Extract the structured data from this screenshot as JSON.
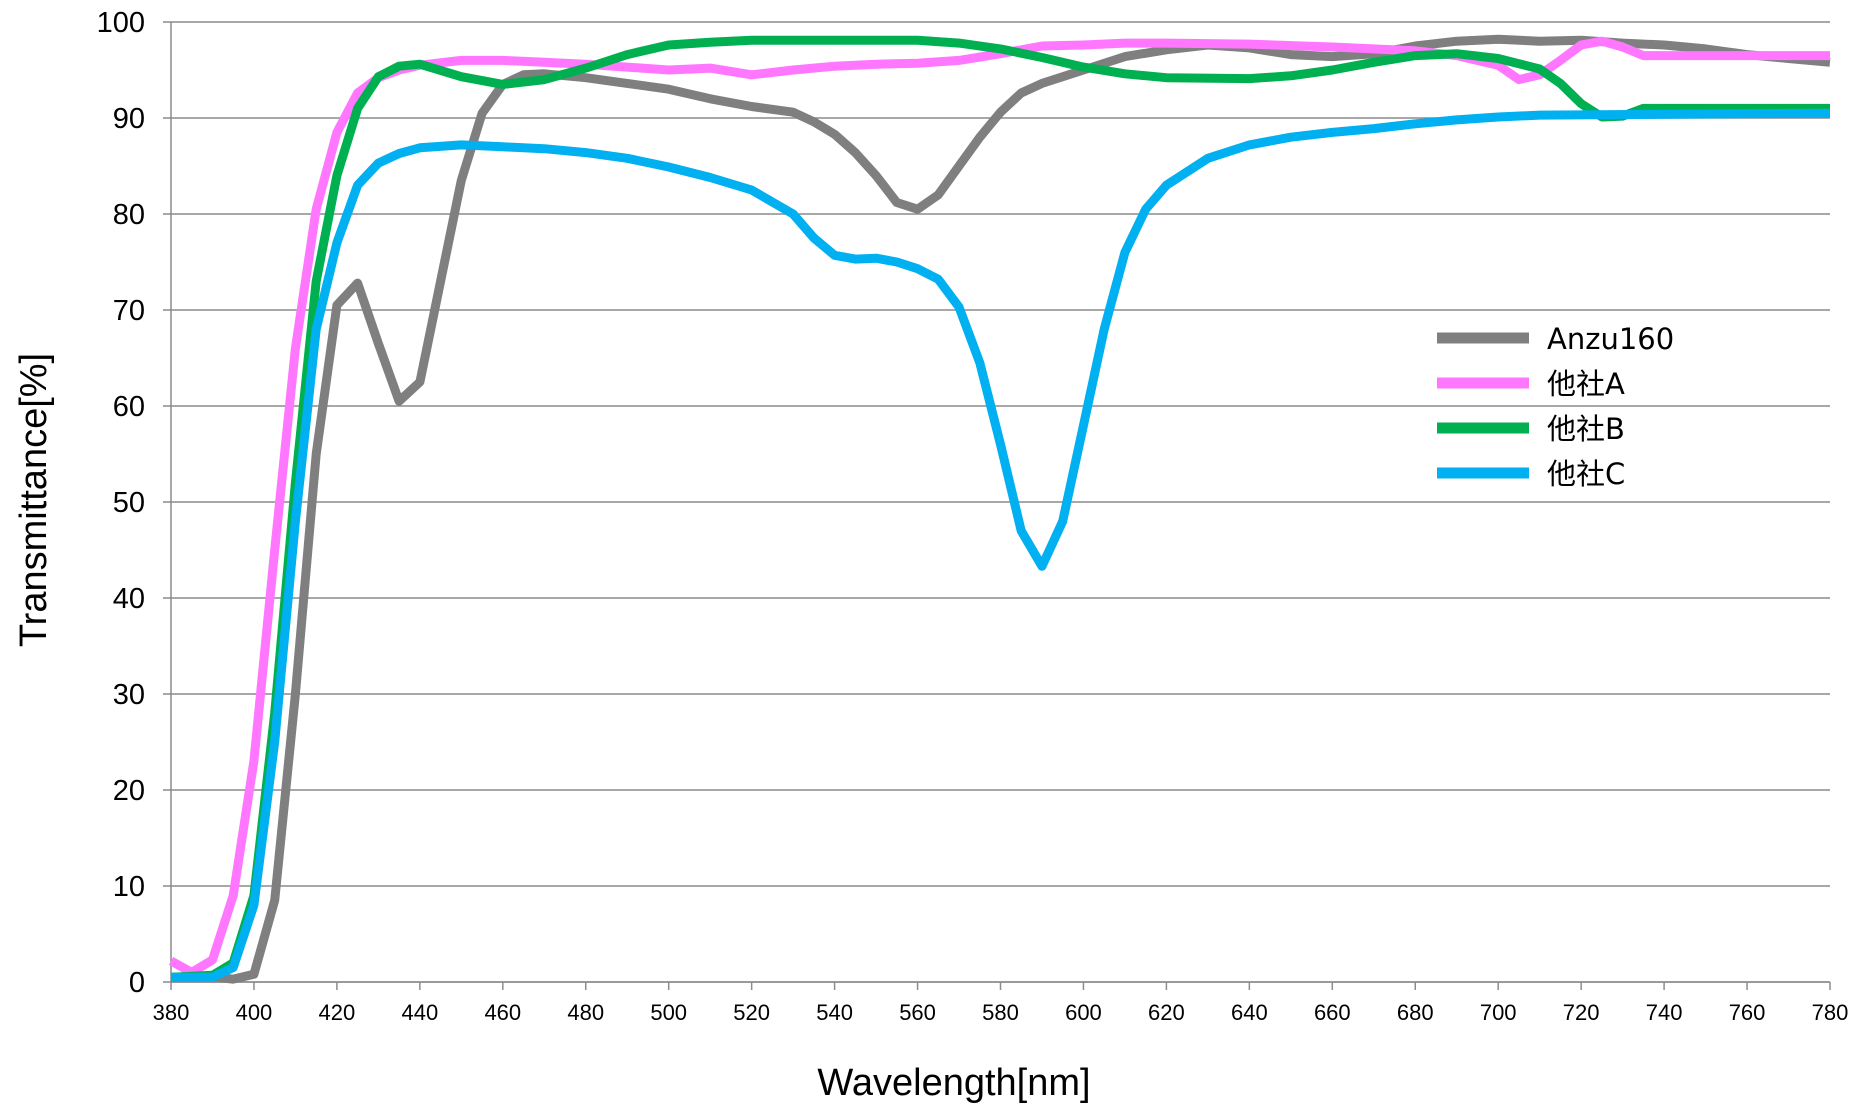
{
  "chart_data": {
    "type": "line",
    "title": "",
    "xlabel": "Wavelength[nm]",
    "ylabel": "Transmittance[%]",
    "xlim": [
      380,
      780
    ],
    "ylim": [
      0,
      100
    ],
    "x_ticks": [
      380,
      400,
      420,
      440,
      460,
      480,
      500,
      520,
      540,
      560,
      580,
      600,
      620,
      640,
      660,
      680,
      700,
      720,
      740,
      760,
      780
    ],
    "y_ticks": [
      0,
      10,
      20,
      30,
      40,
      50,
      60,
      70,
      80,
      90,
      100
    ],
    "grid": "horizontal",
    "legend_position": "right",
    "series": [
      {
        "name": "Anzu160",
        "color": "#7f7f7f",
        "points": [
          [
            380,
            0.5
          ],
          [
            390,
            0.5
          ],
          [
            395,
            0.3
          ],
          [
            400,
            0.8
          ],
          [
            405,
            8.5
          ],
          [
            410,
            30
          ],
          [
            415,
            55
          ],
          [
            420,
            70.5
          ],
          [
            425,
            72.8
          ],
          [
            430,
            66.5
          ],
          [
            435,
            60.5
          ],
          [
            440,
            62.5
          ],
          [
            445,
            73
          ],
          [
            450,
            83.5
          ],
          [
            455,
            90.5
          ],
          [
            460,
            93.5
          ],
          [
            465,
            94.5
          ],
          [
            470,
            94.6
          ],
          [
            480,
            94.2
          ],
          [
            490,
            93.6
          ],
          [
            500,
            93
          ],
          [
            510,
            92
          ],
          [
            520,
            91.2
          ],
          [
            530,
            90.6
          ],
          [
            535,
            89.6
          ],
          [
            540,
            88.3
          ],
          [
            545,
            86.4
          ],
          [
            550,
            84
          ],
          [
            555,
            81.2
          ],
          [
            560,
            80.5
          ],
          [
            565,
            82
          ],
          [
            570,
            85
          ],
          [
            575,
            88
          ],
          [
            580,
            90.6
          ],
          [
            585,
            92.6
          ],
          [
            590,
            93.6
          ],
          [
            600,
            95
          ],
          [
            610,
            96.4
          ],
          [
            620,
            97.1
          ],
          [
            630,
            97.6
          ],
          [
            640,
            97.3
          ],
          [
            650,
            96.6
          ],
          [
            660,
            96.4
          ],
          [
            670,
            96.7
          ],
          [
            680,
            97.5
          ],
          [
            690,
            98
          ],
          [
            700,
            98.2
          ],
          [
            710,
            98
          ],
          [
            720,
            98.1
          ],
          [
            730,
            97.8
          ],
          [
            740,
            97.6
          ],
          [
            750,
            97.2
          ],
          [
            760,
            96.6
          ],
          [
            770,
            96.2
          ],
          [
            780,
            95.8
          ]
        ]
      },
      {
        "name": "他社A",
        "color": "#ff77ff",
        "points": [
          [
            380,
            2.2
          ],
          [
            385,
            1
          ],
          [
            390,
            2.3
          ],
          [
            395,
            9
          ],
          [
            400,
            23
          ],
          [
            405,
            45
          ],
          [
            410,
            66
          ],
          [
            415,
            80.5
          ],
          [
            420,
            88.5
          ],
          [
            425,
            92.6
          ],
          [
            430,
            94.2
          ],
          [
            435,
            95
          ],
          [
            440,
            95.5
          ],
          [
            450,
            96
          ],
          [
            460,
            96
          ],
          [
            470,
            95.8
          ],
          [
            480,
            95.6
          ],
          [
            490,
            95.3
          ],
          [
            500,
            95
          ],
          [
            510,
            95.2
          ],
          [
            520,
            94.5
          ],
          [
            530,
            95
          ],
          [
            540,
            95.4
          ],
          [
            550,
            95.6
          ],
          [
            560,
            95.7
          ],
          [
            570,
            96
          ],
          [
            580,
            96.7
          ],
          [
            590,
            97.5
          ],
          [
            600,
            97.6
          ],
          [
            610,
            97.8
          ],
          [
            620,
            97.8
          ],
          [
            640,
            97.7
          ],
          [
            660,
            97.4
          ],
          [
            680,
            97
          ],
          [
            690,
            96.5
          ],
          [
            700,
            95.5
          ],
          [
            705,
            94
          ],
          [
            710,
            94.5
          ],
          [
            715,
            96
          ],
          [
            720,
            97.6
          ],
          [
            725,
            98
          ],
          [
            730,
            97.4
          ],
          [
            735,
            96.5
          ],
          [
            740,
            96.5
          ],
          [
            780,
            96.5
          ]
        ]
      },
      {
        "name": "他社B",
        "color": "#00b050",
        "points": [
          [
            380,
            0.5
          ],
          [
            390,
            0.7
          ],
          [
            395,
            2
          ],
          [
            400,
            9
          ],
          [
            405,
            28
          ],
          [
            410,
            52
          ],
          [
            415,
            73
          ],
          [
            420,
            84
          ],
          [
            425,
            91
          ],
          [
            430,
            94.3
          ],
          [
            435,
            95.4
          ],
          [
            440,
            95.6
          ],
          [
            450,
            94.3
          ],
          [
            460,
            93.5
          ],
          [
            470,
            94
          ],
          [
            480,
            95.2
          ],
          [
            490,
            96.6
          ],
          [
            500,
            97.6
          ],
          [
            510,
            97.9
          ],
          [
            520,
            98.1
          ],
          [
            560,
            98.1
          ],
          [
            570,
            97.8
          ],
          [
            580,
            97.2
          ],
          [
            590,
            96.3
          ],
          [
            600,
            95.3
          ],
          [
            610,
            94.6
          ],
          [
            620,
            94.2
          ],
          [
            640,
            94.1
          ],
          [
            650,
            94.4
          ],
          [
            660,
            95
          ],
          [
            670,
            95.8
          ],
          [
            680,
            96.5
          ],
          [
            690,
            96.7
          ],
          [
            700,
            96.2
          ],
          [
            710,
            95.1
          ],
          [
            715,
            93.6
          ],
          [
            720,
            91.5
          ],
          [
            725,
            90.1
          ],
          [
            730,
            90.2
          ],
          [
            735,
            91
          ],
          [
            780,
            91
          ]
        ]
      },
      {
        "name": "他社C",
        "color": "#00b0f0",
        "points": [
          [
            380,
            0.5
          ],
          [
            390,
            0.5
          ],
          [
            395,
            1.5
          ],
          [
            400,
            8
          ],
          [
            405,
            25
          ],
          [
            410,
            48
          ],
          [
            415,
            68
          ],
          [
            420,
            77
          ],
          [
            425,
            83
          ],
          [
            430,
            85.3
          ],
          [
            435,
            86.3
          ],
          [
            440,
            86.9
          ],
          [
            450,
            87.2
          ],
          [
            460,
            87
          ],
          [
            470,
            86.8
          ],
          [
            480,
            86.4
          ],
          [
            490,
            85.8
          ],
          [
            500,
            84.9
          ],
          [
            510,
            83.8
          ],
          [
            520,
            82.5
          ],
          [
            530,
            80
          ],
          [
            535,
            77.5
          ],
          [
            540,
            75.7
          ],
          [
            545,
            75.3
          ],
          [
            550,
            75.4
          ],
          [
            555,
            75
          ],
          [
            560,
            74.3
          ],
          [
            565,
            73.2
          ],
          [
            570,
            70.3
          ],
          [
            575,
            64.5
          ],
          [
            580,
            56
          ],
          [
            585,
            47
          ],
          [
            590,
            43.3
          ],
          [
            595,
            48
          ],
          [
            600,
            58
          ],
          [
            605,
            68
          ],
          [
            610,
            76
          ],
          [
            615,
            80.5
          ],
          [
            620,
            83
          ],
          [
            630,
            85.8
          ],
          [
            640,
            87.2
          ],
          [
            650,
            88
          ],
          [
            660,
            88.5
          ],
          [
            670,
            88.9
          ],
          [
            680,
            89.4
          ],
          [
            690,
            89.8
          ],
          [
            700,
            90.1
          ],
          [
            710,
            90.3
          ],
          [
            780,
            90.5
          ]
        ]
      }
    ]
  }
}
